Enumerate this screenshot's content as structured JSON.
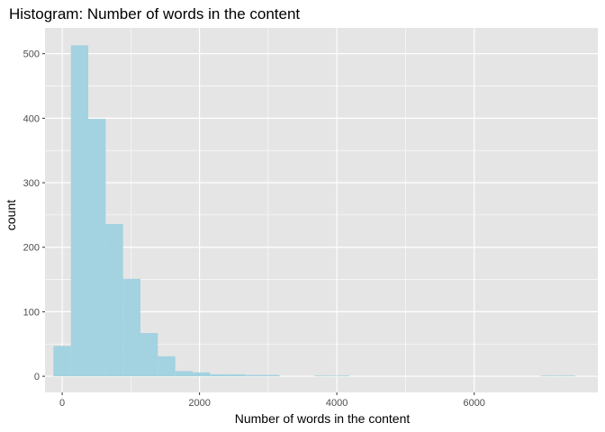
{
  "chart_data": {
    "type": "bar",
    "subtype": "histogram",
    "title": "Histogram: Number of words in the content",
    "xlabel": "Number of words in the content",
    "ylabel": "count",
    "xlim": [
      -250,
      7800
    ],
    "ylim": [
      -25,
      540
    ],
    "xticks": [
      0,
      2000,
      4000,
      6000
    ],
    "yticks": [
      0,
      100,
      200,
      300,
      400,
      500
    ],
    "xtick_labels": [
      "0",
      "2000",
      "4000",
      "6000"
    ],
    "ytick_labels": [
      "0",
      "100",
      "200",
      "300",
      "400",
      "500"
    ],
    "bin_width": 253,
    "bins": [
      {
        "x0": -127,
        "x1": 127,
        "count": 47
      },
      {
        "x0": 127,
        "x1": 380,
        "count": 513
      },
      {
        "x0": 380,
        "x1": 633,
        "count": 399
      },
      {
        "x0": 633,
        "x1": 887,
        "count": 236
      },
      {
        "x0": 887,
        "x1": 1140,
        "count": 151
      },
      {
        "x0": 1140,
        "x1": 1393,
        "count": 67
      },
      {
        "x0": 1393,
        "x1": 1647,
        "count": 31
      },
      {
        "x0": 1647,
        "x1": 1900,
        "count": 8
      },
      {
        "x0": 1900,
        "x1": 2153,
        "count": 6
      },
      {
        "x0": 2153,
        "x1": 2407,
        "count": 3
      },
      {
        "x0": 2407,
        "x1": 2660,
        "count": 3
      },
      {
        "x0": 2660,
        "x1": 2913,
        "count": 2
      },
      {
        "x0": 2913,
        "x1": 3167,
        "count": 2
      },
      {
        "x0": 3167,
        "x1": 3420,
        "count": 0
      },
      {
        "x0": 3420,
        "x1": 3673,
        "count": 0
      },
      {
        "x0": 3673,
        "x1": 3927,
        "count": 1
      },
      {
        "x0": 3927,
        "x1": 4180,
        "count": 1
      },
      {
        "x0": 4180,
        "x1": 4433,
        "count": 0
      },
      {
        "x0": 4433,
        "x1": 4687,
        "count": 0
      },
      {
        "x0": 4687,
        "x1": 4940,
        "count": 0
      },
      {
        "x0": 4940,
        "x1": 5193,
        "count": 0
      },
      {
        "x0": 5193,
        "x1": 5447,
        "count": 0
      },
      {
        "x0": 5447,
        "x1": 5700,
        "count": 0
      },
      {
        "x0": 5700,
        "x1": 5953,
        "count": 0
      },
      {
        "x0": 5953,
        "x1": 6207,
        "count": 0
      },
      {
        "x0": 6207,
        "x1": 6460,
        "count": 0
      },
      {
        "x0": 6460,
        "x1": 6713,
        "count": 0
      },
      {
        "x0": 6713,
        "x1": 6967,
        "count": 0
      },
      {
        "x0": 6967,
        "x1": 7220,
        "count": 1
      },
      {
        "x0": 7220,
        "x1": 7473,
        "count": 1
      }
    ],
    "bar_color": "#a3d2e1",
    "panel_color": "#e5e5e5",
    "grid": true,
    "grid_color": "#ffffff",
    "legend": "none"
  }
}
